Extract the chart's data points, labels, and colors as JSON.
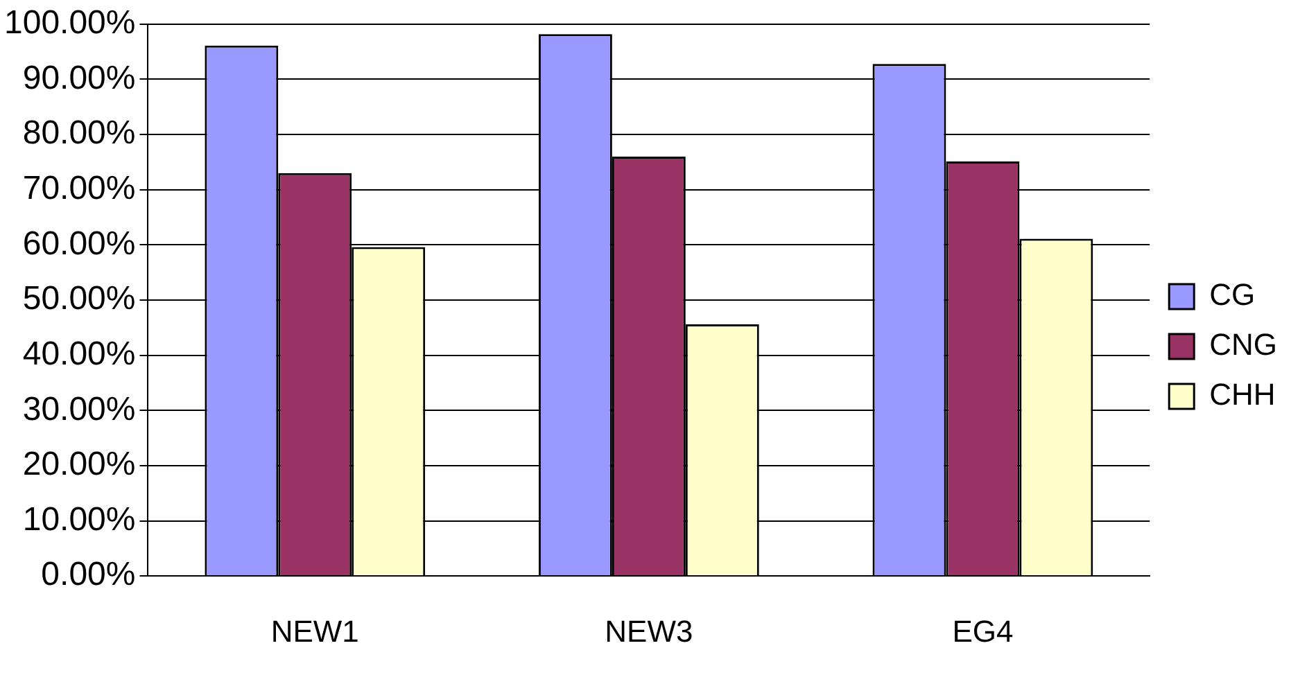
{
  "chart_data": {
    "type": "bar",
    "categories": [
      "NEW1",
      "NEW3",
      "EG4"
    ],
    "series": [
      {
        "name": "CG",
        "color": "#9999ff",
        "values": [
          96.1,
          98.2,
          92.8
        ]
      },
      {
        "name": "CNG",
        "color": "#993366",
        "values": [
          73.0,
          76.0,
          75.1
        ]
      },
      {
        "name": "CHH",
        "color": "#ffffcc",
        "values": [
          59.6,
          45.6,
          61.1
        ]
      }
    ],
    "ylim": [
      0,
      100
    ],
    "yticks": [
      {
        "value": 0,
        "label": "0.00%"
      },
      {
        "value": 10,
        "label": "10.00%"
      },
      {
        "value": 20,
        "label": "20.00%"
      },
      {
        "value": 30,
        "label": "30.00%"
      },
      {
        "value": 40,
        "label": "40.00%"
      },
      {
        "value": 50,
        "label": "50.00%"
      },
      {
        "value": 60,
        "label": "60.00%"
      },
      {
        "value": 70,
        "label": "70.00%"
      },
      {
        "value": 80,
        "label": "80.00%"
      },
      {
        "value": 90,
        "label": "90.00%"
      },
      {
        "value": 100,
        "label": "100.00%"
      }
    ],
    "grid": "y",
    "legend": "right"
  }
}
